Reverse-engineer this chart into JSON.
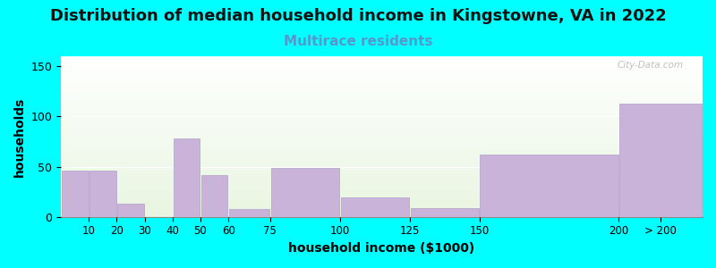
{
  "title": "Distribution of median household income in Kingstowne, VA in 2022",
  "subtitle": "Multirace residents",
  "xlabel": "household income ($1000)",
  "ylabel": "households",
  "background_color": "#00FFFF",
  "bar_color": "#c9b3d9",
  "bar_edge_color": "#b09fcc",
  "values": [
    46,
    46,
    13,
    0,
    78,
    42,
    8,
    49,
    19,
    9,
    62,
    113
  ],
  "bin_edges": [
    0,
    10,
    20,
    30,
    40,
    50,
    60,
    75,
    100,
    125,
    150,
    200,
    230
  ],
  "tick_positions": [
    10,
    20,
    30,
    40,
    50,
    60,
    75,
    100,
    125,
    150,
    200,
    215
  ],
  "tick_labels": [
    "10",
    "20",
    "30",
    "40",
    "50",
    "60",
    "75",
    "100",
    "125",
    "150",
    "200",
    "> 200"
  ],
  "ylim": [
    0,
    160
  ],
  "yticks": [
    0,
    50,
    100,
    150
  ],
  "title_fontsize": 13,
  "subtitle_fontsize": 11,
  "subtitle_color": "#5599cc",
  "axis_label_fontsize": 10,
  "watermark": "City-Data.com"
}
